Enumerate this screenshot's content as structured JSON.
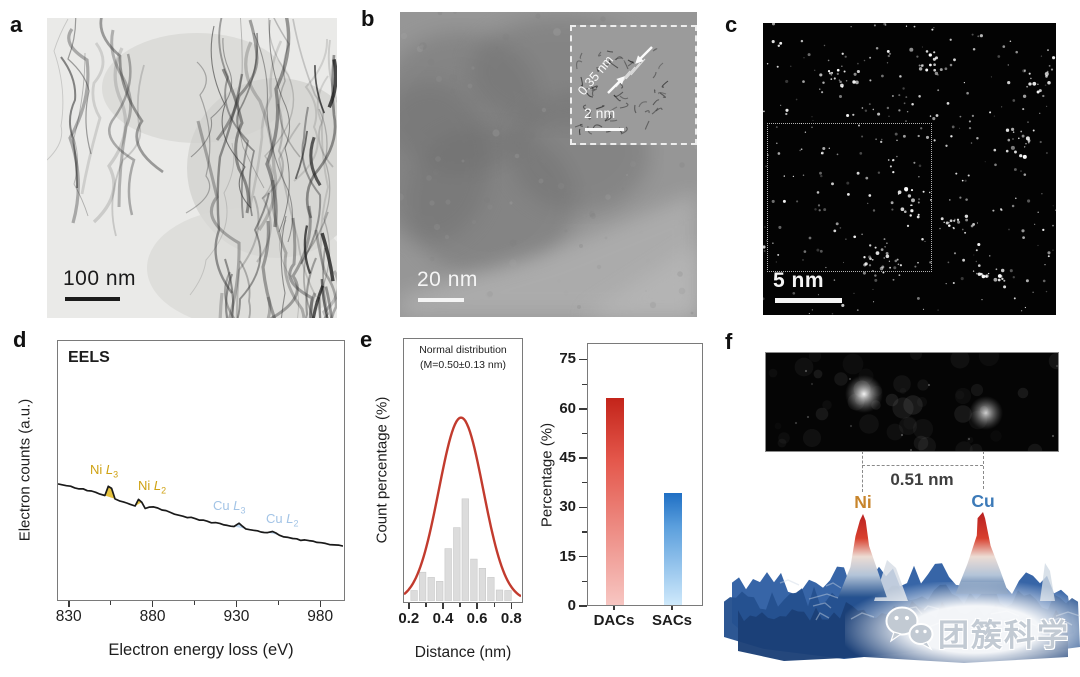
{
  "figure": {
    "type": "multi-panel scientific figure",
    "background": "#ffffff"
  },
  "panels": {
    "a": {
      "letter": "a",
      "scale_bar_label": "100 nm",
      "description": "bright-field TEM image of wrinkled carbon nanosheets"
    },
    "b": {
      "letter": "b",
      "scale_bar_label": "20 nm",
      "description": "HRTEM image of nanosheet edge",
      "inset": {
        "lattice_spacing_label": "0.35 nm",
        "scale_bar_label": "2 nm"
      }
    },
    "c": {
      "letter": "c",
      "scale_bar_label": "5 nm",
      "description": "HAADF-STEM image with bright atomic sites and dotted region box"
    },
    "d": {
      "letter": "d"
    },
    "e": {
      "letter": "e"
    },
    "f": {
      "letter": "f",
      "distance_label": "0.51 nm",
      "atoms": [
        {
          "symbol": "Ni",
          "color": "#c8852c"
        },
        {
          "symbol": "Cu",
          "color": "#3c7ab8"
        }
      ],
      "description": "atom-pair image above 3D intensity surface with Ni and Cu peaks"
    }
  },
  "watermark": {
    "icon": "wechat-logo",
    "text": "团簇科学"
  },
  "chart_data": [
    {
      "panel": "d",
      "type": "line",
      "title": "EELS",
      "xlabel": "Electron energy loss (eV)",
      "ylabel": "Electron counts (a.u.)",
      "xlim": [
        823,
        993
      ],
      "x_ticks": [
        "830",
        "880",
        "930",
        "980"
      ],
      "x_ticks_val": [
        830,
        880,
        930,
        980
      ],
      "x_minor_ticks": [
        855,
        905,
        955
      ],
      "y_axis": "unlabeled (arbitrary units)",
      "line_color": "#1a1a1a",
      "curve": [
        [
          823,
          0.445
        ],
        [
          838,
          0.425
        ],
        [
          848,
          0.408
        ],
        [
          851,
          0.4
        ],
        [
          853,
          0.436
        ],
        [
          855,
          0.428
        ],
        [
          857,
          0.388
        ],
        [
          860,
          0.38
        ],
        [
          866,
          0.368
        ],
        [
          869,
          0.36
        ],
        [
          871,
          0.384
        ],
        [
          873,
          0.376
        ],
        [
          875,
          0.352
        ],
        [
          880,
          0.356
        ],
        [
          890,
          0.335
        ],
        [
          900,
          0.318
        ],
        [
          912,
          0.3
        ],
        [
          922,
          0.289
        ],
        [
          928,
          0.282
        ],
        [
          931,
          0.292
        ],
        [
          935,
          0.272
        ],
        [
          942,
          0.263
        ],
        [
          948,
          0.255
        ],
        [
          951,
          0.263
        ],
        [
          955,
          0.245
        ],
        [
          963,
          0.235
        ],
        [
          975,
          0.222
        ],
        [
          985,
          0.212
        ],
        [
          993,
          0.205
        ]
      ],
      "edge_fills": [
        {
          "label_element": "Ni",
          "label_edge": "L",
          "label_sub": "3",
          "x0": 850.5,
          "x1": 858.5,
          "color": "#e3bc2a",
          "label_color": "#cfa213"
        },
        {
          "label_element": "Ni",
          "label_edge": "L",
          "label_sub": "2",
          "x0": 868.0,
          "x1": 874.5,
          "color": "#e3bc2a",
          "label_color": "#cfa213"
        },
        {
          "label_element": "Cu",
          "label_edge": "L",
          "label_sub": "3",
          "x0": 927.0,
          "x1": 936.0,
          "color": "#b9d4ee",
          "label_color": "#a3c4e6"
        },
        {
          "label_element": "Cu",
          "label_edge": "L",
          "label_sub": "2",
          "x0": 947.0,
          "x1": 956.0,
          "color": "#b9d4ee",
          "label_color": "#a3c4e6"
        }
      ]
    },
    {
      "panel": "e-left",
      "type": "histogram+fit",
      "annotation_line1": "Normal distribution",
      "annotation_line2": "(M=0.50±0.13 nm)",
      "xlabel": "Distance (nm)",
      "ylabel": "Count percentage (%)",
      "xlim": [
        0.166,
        0.851
      ],
      "x_ticks": [
        "0.2",
        "0.4",
        "0.6",
        "0.8"
      ],
      "x_ticks_val": [
        0.2,
        0.4,
        0.6,
        0.8
      ],
      "x_minor_ticks": [
        0.3,
        0.5,
        0.7
      ],
      "y_axis": "unlabeled (%)",
      "bar_color": "#dcdcdc",
      "bar_edge": "#c9c9c9",
      "bins": [
        0.225,
        0.275,
        0.325,
        0.375,
        0.425,
        0.475,
        0.525,
        0.575,
        0.625,
        0.675,
        0.725,
        0.775
      ],
      "counts_rel": [
        0.04,
        0.11,
        0.09,
        0.075,
        0.2,
        0.28,
        0.39,
        0.16,
        0.125,
        0.09,
        0.042,
        0.04
      ],
      "fit": {
        "shape": "gaussian",
        "mean": 0.5,
        "sigma": 0.13,
        "peak_rel": 0.7,
        "color": "#c23b2e"
      }
    },
    {
      "panel": "e-right",
      "type": "bar",
      "ylabel": "Percentage (%)",
      "ylim": [
        0,
        80
      ],
      "y_ticks": [
        "0",
        "15",
        "30",
        "45",
        "60",
        "75"
      ],
      "y_ticks_val": [
        0,
        15,
        30,
        45,
        60,
        75
      ],
      "y_minor_ticks": [
        7.5,
        22.5,
        37.5,
        52.5,
        67.5
      ],
      "categories": [
        "DACs",
        "SACs"
      ],
      "values": [
        63,
        34
      ],
      "bar_colors": [
        {
          "top": "#c3241a",
          "mid": "#e4574b",
          "bottom": "#f7c6c2"
        },
        {
          "top": "#1f6fc4",
          "mid": "#5b9fdd",
          "bottom": "#cfe9fb"
        }
      ]
    }
  ]
}
